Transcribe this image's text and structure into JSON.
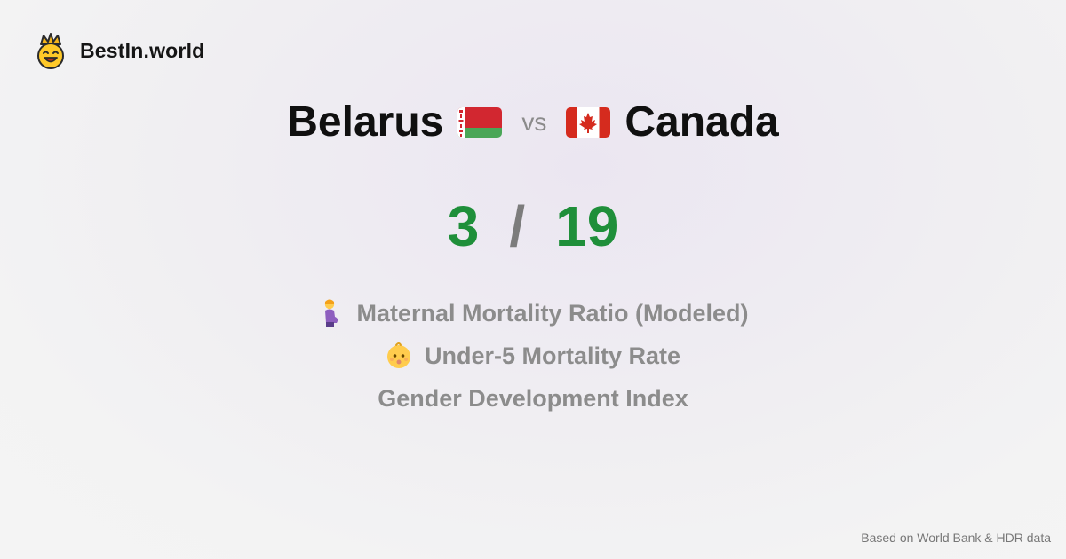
{
  "brand": {
    "name": "BestIn.world",
    "logo_icon": "smiling-crown-icon"
  },
  "comparison": {
    "left_country": "Belarus",
    "left_flag": "belarus-flag-icon",
    "vs_label": "vs",
    "right_country": "Canada",
    "right_flag": "canada-flag-icon"
  },
  "score": {
    "left_value": "3",
    "separator": "/",
    "right_value": "19",
    "color": "#1f8f3a"
  },
  "metrics": [
    {
      "icon": "pregnant-woman-icon",
      "label": "Maternal Mortality Ratio (Modeled)"
    },
    {
      "icon": "baby-face-icon",
      "label": "Under-5 Mortality Rate"
    },
    {
      "icon": "",
      "label": "Gender Development Index"
    }
  ],
  "footer": {
    "source": "Based on World Bank & HDR data"
  }
}
